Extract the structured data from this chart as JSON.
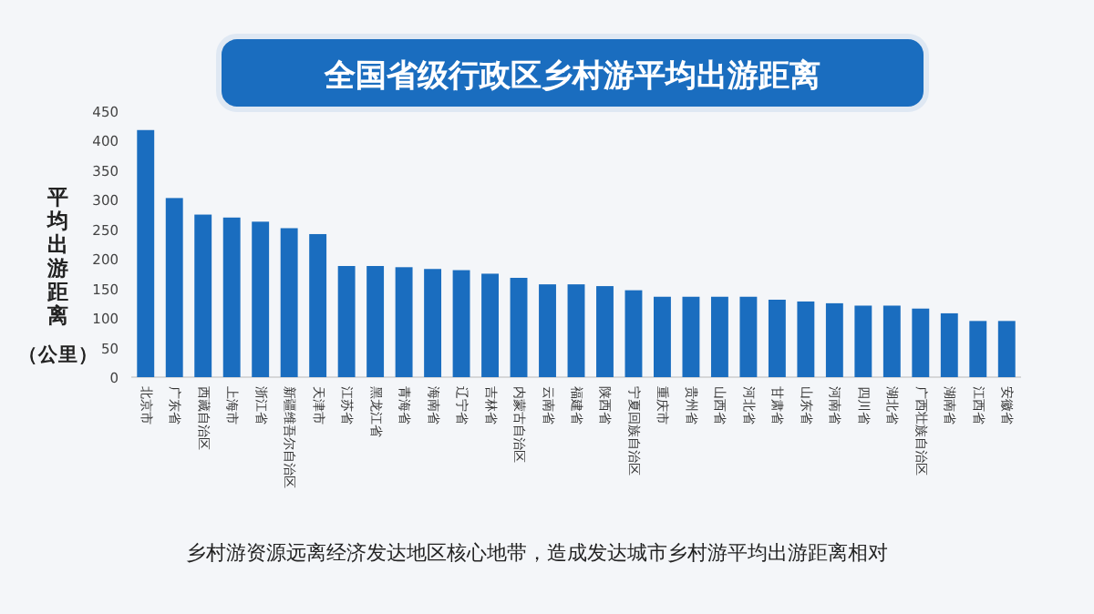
{
  "chart_data": {
    "type": "bar",
    "title": "全国省级行政区乡村游平均出游距离",
    "ylabel": "平均出游距离（公里）",
    "categories": [
      "北京市",
      "广东省",
      "西藏自治区",
      "上海市",
      "浙江省",
      "新疆维吾尔自治区",
      "天津市",
      "江苏省",
      "黑龙江省",
      "青海省",
      "海南省",
      "辽宁省",
      "吉林省",
      "内蒙古自治区",
      "云南省",
      "福建省",
      "陕西省",
      "宁夏回族自治区",
      "重庆市",
      "贵州省",
      "山西省",
      "河北省",
      "甘肃省",
      "山东省",
      "河南省",
      "四川省",
      "湖北省",
      "广西壮族自治区",
      "湖南省",
      "江西省",
      "安徽省"
    ],
    "values": [
      418,
      303,
      275,
      270,
      263,
      252,
      242,
      188,
      188,
      186,
      183,
      181,
      175,
      168,
      157,
      157,
      154,
      147,
      136,
      136,
      136,
      136,
      131,
      128,
      125,
      121,
      121,
      116,
      108,
      95,
      95
    ],
    "color": "#1a6dbf",
    "ylim": [
      0,
      450
    ],
    "yticks": [
      0,
      50,
      100,
      150,
      200,
      250,
      300,
      350,
      400,
      450
    ],
    "grid": false,
    "annotations": [
      "乡村游资源远离经济发达地区核心地带，造成发达城市乡村游平均出游距离相对"
    ]
  }
}
